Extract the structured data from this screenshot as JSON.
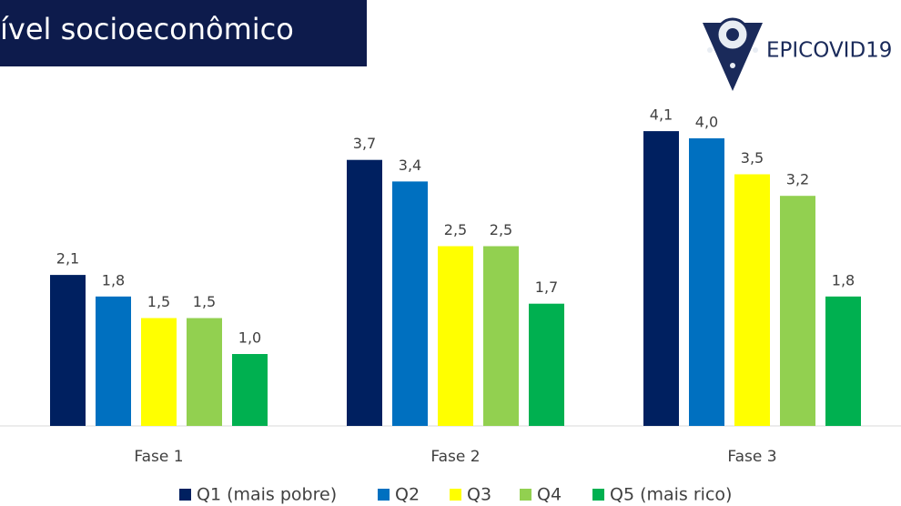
{
  "logo": "EPICOVID19",
  "chart_data": {
    "type": "bar",
    "title": "ível socioeconômico",
    "categories": [
      "Fase 1",
      "Fase 2",
      "Fase 3"
    ],
    "series": [
      {
        "name": "Q1 (mais pobre)",
        "color": "#002060",
        "values": [
          2.1,
          3.7,
          4.1
        ],
        "value_labels": [
          "2,1",
          "3,7",
          "4,1"
        ]
      },
      {
        "name": "Q2",
        "color": "#0070c0",
        "values": [
          1.8,
          3.4,
          4.0
        ],
        "value_labels": [
          "1,8",
          "3,4",
          "4,0"
        ]
      },
      {
        "name": "Q3",
        "color": "#ffff00",
        "values": [
          1.5,
          2.5,
          3.5
        ],
        "value_labels": [
          "1,5",
          "2,5",
          "3,5"
        ]
      },
      {
        "name": "Q4",
        "color": "#92d050",
        "values": [
          1.5,
          2.5,
          3.2
        ],
        "value_labels": [
          "1,5",
          "2,5",
          "3,2"
        ]
      },
      {
        "name": "Q5 (mais rico)",
        "color": "#00b050",
        "values": [
          1.0,
          1.7,
          1.8
        ],
        "value_labels": [
          "1,0",
          "1,7",
          "1,8"
        ]
      }
    ]
  }
}
